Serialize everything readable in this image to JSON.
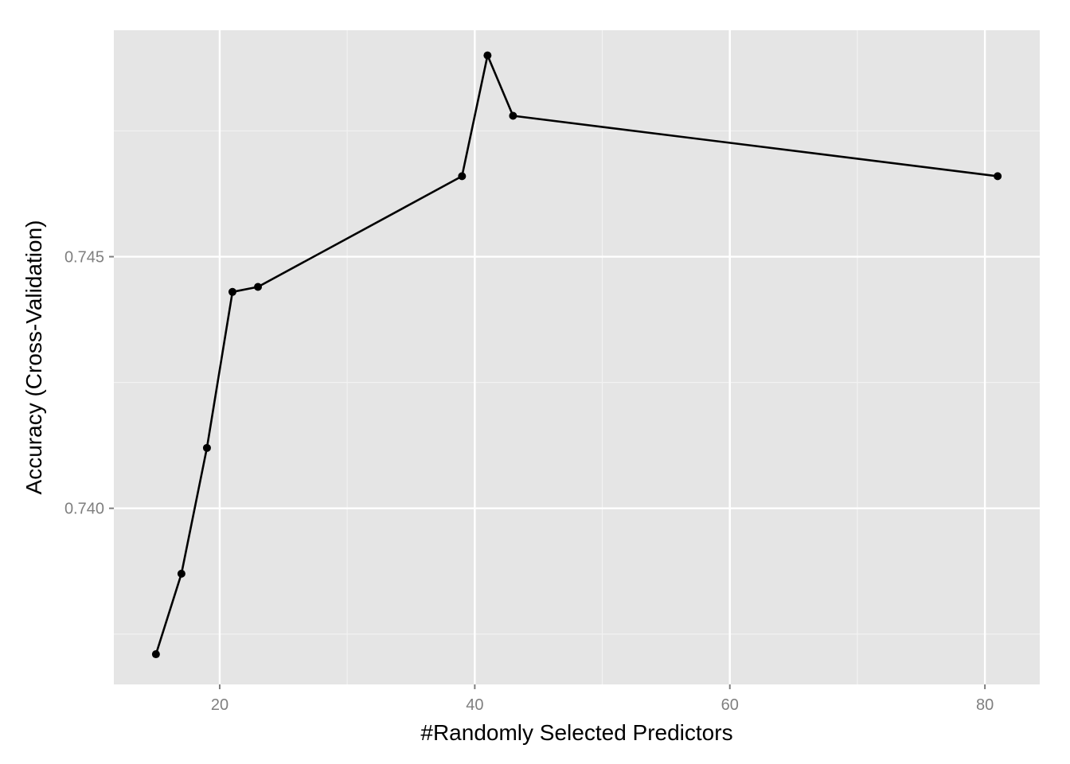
{
  "chart_data": {
    "type": "line",
    "title": "",
    "xlabel": "#Randomly Selected Predictors",
    "ylabel": "Accuracy (Cross-Validation)",
    "xlim": [
      11.7,
      84.3
    ],
    "ylim": [
      0.7365,
      0.7495
    ],
    "x_ticks": [
      20,
      40,
      60,
      80
    ],
    "x_tick_labels": [
      "20",
      "40",
      "60",
      "80"
    ],
    "x_minor_ticks": [
      30,
      50,
      70
    ],
    "y_ticks": [
      0.74,
      0.745
    ],
    "y_tick_labels": [
      "0.740",
      "0.745"
    ],
    "y_minor_ticks": [
      0.7375,
      0.7425,
      0.7475
    ],
    "grid": true,
    "legend": "none",
    "colors": {
      "panel_background": "#e5e5e5",
      "grid_major": "#ffffff",
      "grid_minor": "#f2f2f2",
      "line": "#000000",
      "point": "#000000",
      "tick_text": "#7f7f7f",
      "axis_title": "#000000"
    },
    "series": [
      {
        "x": [
          15,
          17,
          19,
          21,
          23,
          39,
          41,
          43,
          81
        ],
        "y": [
          0.7371,
          0.7387,
          0.7412,
          0.7443,
          0.7444,
          0.7466,
          0.749,
          0.7478,
          0.7466
        ]
      }
    ]
  }
}
